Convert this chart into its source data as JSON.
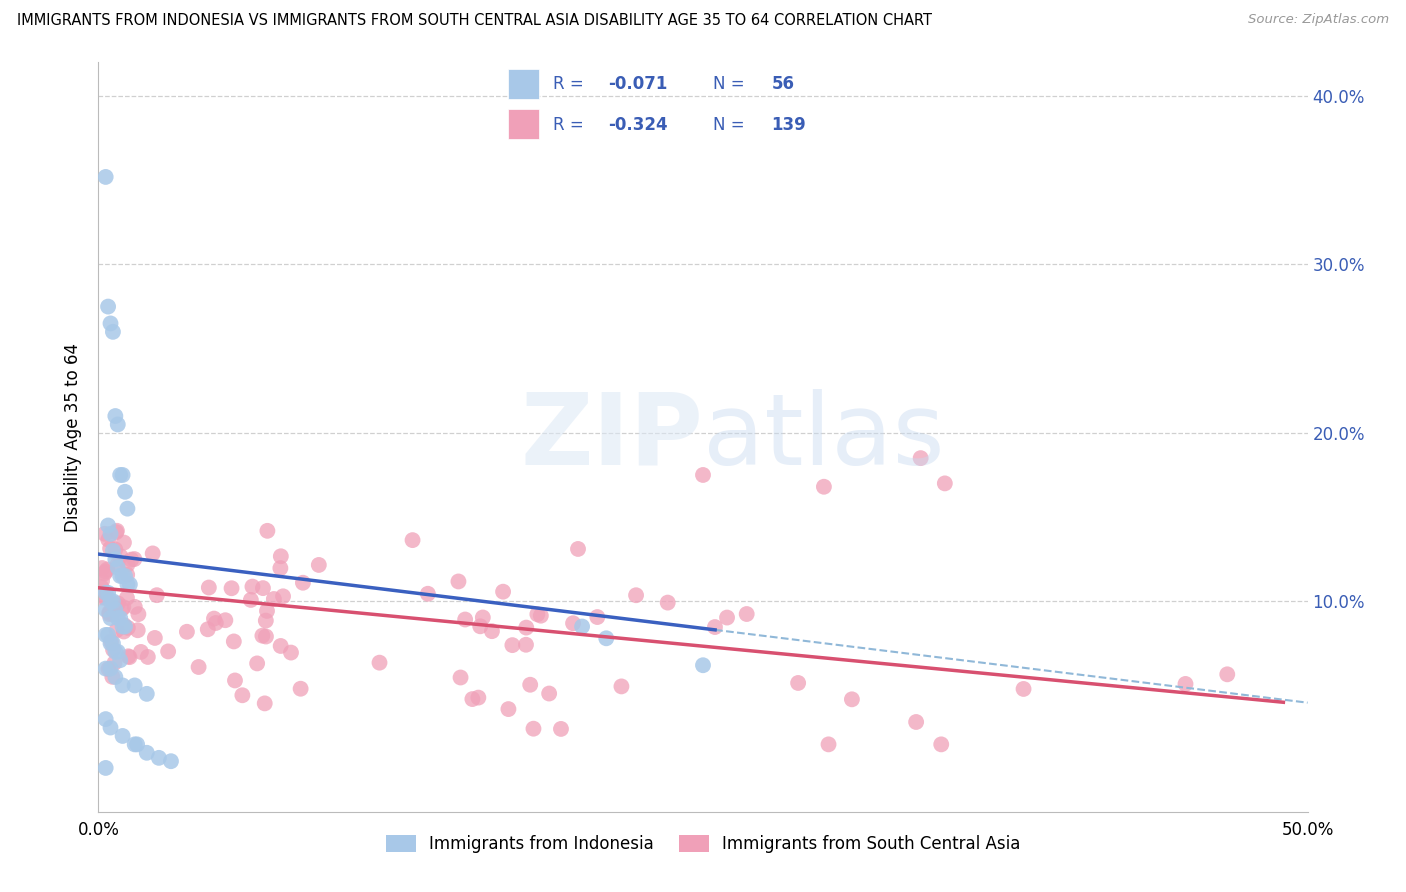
{
  "title": "IMMIGRANTS FROM INDONESIA VS IMMIGRANTS FROM SOUTH CENTRAL ASIA DISABILITY AGE 35 TO 64 CORRELATION CHART",
  "source": "Source: ZipAtlas.com",
  "ylabel": "Disability Age 35 to 64",
  "legend_label1": "Immigrants from Indonesia",
  "legend_label2": "Immigrants from South Central Asia",
  "r1": -0.071,
  "n1": 56,
  "r2": -0.324,
  "n2": 139,
  "color1": "#a8c8e8",
  "color2": "#f0a0b8",
  "line1_color": "#3a60c0",
  "line2_color": "#d85070",
  "dashed_color": "#90b8d8",
  "bg_color": "#ffffff",
  "grid_color": "#d0d0d0",
  "text_color": "#3a5db5",
  "xlim": [
    0.0,
    0.5
  ],
  "ylim": [
    -0.025,
    0.42
  ]
}
